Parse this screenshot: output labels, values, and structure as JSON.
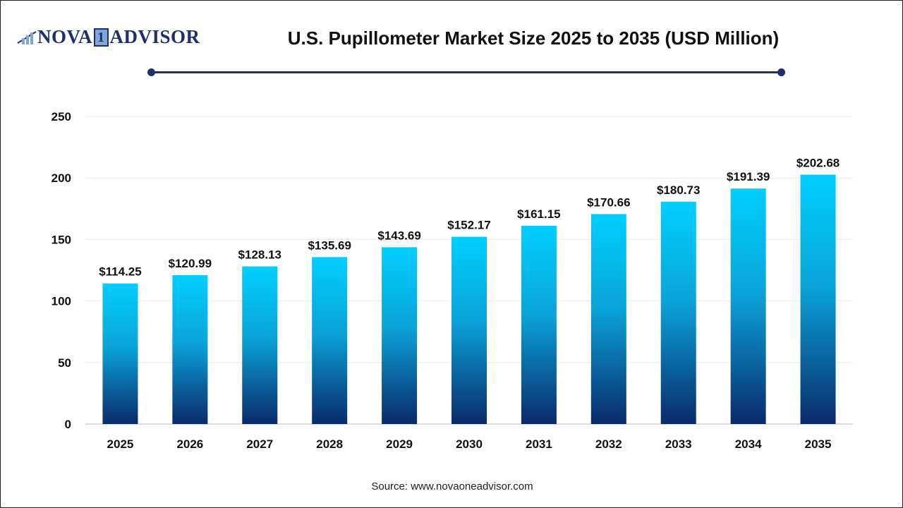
{
  "logo": {
    "text_left": "NOVA",
    "text_one": "1",
    "text_right": "ADVISOR"
  },
  "header": {
    "title": "U.S. Pupillometer Market Size 2025 to 2035 (USD Million)"
  },
  "source": "Source: www.novaoneadvisor.com",
  "colors": {
    "bar_top": "#00cfff",
    "bar_bottom": "#0a2a6b",
    "accent": "#1f2f6b"
  },
  "chart_data": {
    "type": "bar",
    "title": "U.S. Pupillometer Market Size 2025 to 2035 (USD Million)",
    "categories": [
      "2025",
      "2026",
      "2027",
      "2028",
      "2029",
      "2030",
      "2031",
      "2032",
      "2033",
      "2034",
      "2035"
    ],
    "values": [
      114.25,
      120.99,
      128.13,
      135.69,
      143.69,
      152.17,
      161.15,
      170.66,
      180.73,
      191.39,
      202.68
    ],
    "data_labels": [
      "$114.25",
      "$120.99",
      "$128.13",
      "$135.69",
      "$143.69",
      "$152.17",
      "$161.15",
      "$170.66",
      "$180.73",
      "$191.39",
      "$202.68"
    ],
    "ylim": [
      0,
      250
    ],
    "yticks": [
      0,
      50,
      100,
      150,
      200,
      250
    ],
    "grid": true,
    "xlabel": "",
    "ylabel": ""
  }
}
